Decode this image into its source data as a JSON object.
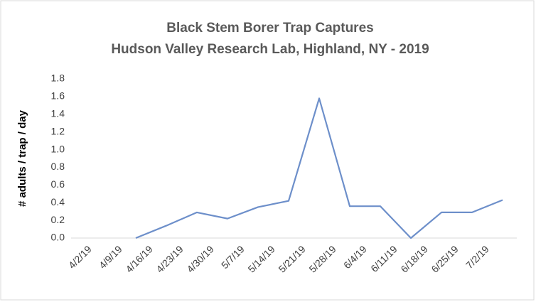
{
  "chart_data": {
    "type": "line",
    "title": "Black Stem Borer Trap Captures",
    "subtitle": "Hudson Valley Research Lab, Highland, NY - 2019",
    "y_label": "# adults / trap / day",
    "categories": [
      "4/2/19",
      "4/9/19",
      "4/16/19",
      "4/23/19",
      "4/30/19",
      "5/7/19",
      "5/14/19",
      "5/21/19",
      "5/28/19",
      "6/4/19",
      "6/11/19",
      "6/18/19",
      "6/25/19",
      "7/2/19",
      null
    ],
    "series": [
      {
        "color": "#6d8fca",
        "values": [
          null,
          null,
          0,
          0.14,
          0.29,
          0.22,
          0.35,
          0.42,
          1.58,
          0.36,
          0.36,
          0,
          0.29,
          0.29,
          0.43
        ]
      }
    ],
    "ylim": [
      0,
      1.8
    ],
    "yticks": [
      {
        "value": 0,
        "label": "0.0"
      },
      {
        "value": 0.2,
        "label": "0.2"
      },
      {
        "value": 0.4,
        "label": "0.4"
      },
      {
        "value": 0.6,
        "label": "0.6"
      },
      {
        "value": 0.8,
        "label": "0.8"
      },
      {
        "value": 1,
        "label": "1.0"
      },
      {
        "value": 1.2,
        "label": "1.2"
      },
      {
        "value": 1.4,
        "label": "1.4"
      },
      {
        "value": 1.6,
        "label": "1.6"
      },
      {
        "value": 1.8,
        "label": "1.8"
      }
    ],
    "grid": false
  }
}
